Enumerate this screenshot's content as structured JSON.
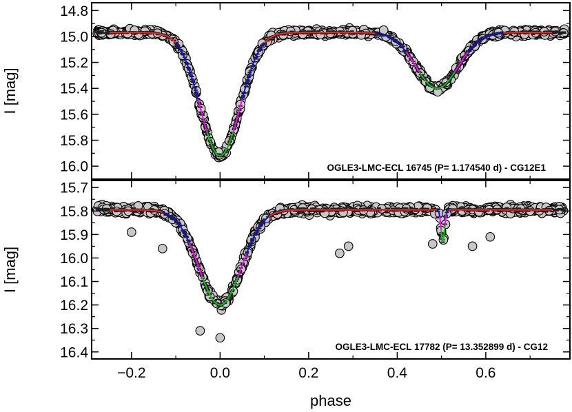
{
  "chart_data": [
    {
      "type": "scatter",
      "title": "",
      "xlabel": "",
      "ylabel": "I [mag]",
      "xlim": [
        -0.29,
        0.79
      ],
      "ylim": [
        16.1,
        14.74
      ],
      "y_inverted": true,
      "yticks": [
        "14.8",
        "15.0",
        "15.2",
        "15.4",
        "15.6",
        "15.8",
        "16.0"
      ],
      "annotation": "OGLE3-LMC-ECL 16745  (P= 1.174540 d) - CG12E1",
      "model": {
        "baseline": 14.97,
        "eclipses": [
          {
            "center": 0.0,
            "depth": 0.95,
            "width": 0.045
          },
          {
            "center": 0.49,
            "depth": 0.43,
            "width": 0.048
          }
        ]
      },
      "model_segments": [
        {
          "color": "red",
          "x": [
            -0.25,
            -0.1
          ]
        },
        {
          "color": "blue",
          "x": [
            -0.1,
            -0.05
          ]
        },
        {
          "color": "magenta",
          "x": [
            -0.05,
            -0.03
          ]
        },
        {
          "color": "green",
          "x": [
            -0.03,
            0.03
          ]
        },
        {
          "color": "magenta",
          "x": [
            0.03,
            0.05
          ]
        },
        {
          "color": "blue",
          "x": [
            0.05,
            0.1
          ]
        },
        {
          "color": "red",
          "x": [
            0.1,
            0.35
          ]
        },
        {
          "color": "blue",
          "x": [
            0.35,
            0.42
          ]
        },
        {
          "color": "magenta",
          "x": [
            0.42,
            0.45
          ]
        },
        {
          "color": "green",
          "x": [
            0.45,
            0.53
          ]
        },
        {
          "color": "magenta",
          "x": [
            0.53,
            0.56
          ]
        },
        {
          "color": "blue",
          "x": [
            0.56,
            0.64
          ]
        },
        {
          "color": "red",
          "x": [
            0.64,
            0.75
          ]
        }
      ],
      "observations": {
        "scatter": 0.03,
        "outliers": []
      }
    },
    {
      "type": "scatter",
      "title": "",
      "xlabel": "phase",
      "ylabel": "I [mag]",
      "xlim": [
        -0.29,
        0.79
      ],
      "ylim": [
        16.43,
        15.67
      ],
      "y_inverted": true,
      "xticks": [
        "−0.2",
        "0.0",
        "0.2",
        "0.4",
        "0.6"
      ],
      "yticks": [
        "15.7",
        "15.8",
        "15.9",
        "16.0",
        "16.1",
        "16.2",
        "16.3",
        "16.4"
      ],
      "annotation": "OGLE3-LMC-ECL 17782  (P= 13.352899 d) - CG12",
      "model": {
        "baseline": 15.795,
        "eclipses": [
          {
            "center": 0.0,
            "depth": 0.405,
            "width": 0.048
          },
          {
            "center": 0.503,
            "depth": 0.135,
            "width": 0.004
          }
        ]
      },
      "model_segments": [
        {
          "color": "red",
          "x": [
            -0.25,
            -0.13
          ]
        },
        {
          "color": "blue",
          "x": [
            -0.13,
            -0.07
          ]
        },
        {
          "color": "magenta",
          "x": [
            -0.07,
            -0.04
          ]
        },
        {
          "color": "green",
          "x": [
            -0.04,
            0.04
          ]
        },
        {
          "color": "magenta",
          "x": [
            0.04,
            0.06
          ]
        },
        {
          "color": "blue",
          "x": [
            0.06,
            0.11
          ]
        },
        {
          "color": "red",
          "x": [
            0.11,
            0.49
          ]
        },
        {
          "color": "blue",
          "x": [
            0.49,
            0.496
          ]
        },
        {
          "color": "magenta",
          "x": [
            0.496,
            0.499
          ]
        },
        {
          "color": "green",
          "x": [
            0.499,
            0.508
          ]
        },
        {
          "color": "magenta",
          "x": [
            0.508,
            0.511
          ]
        },
        {
          "color": "blue",
          "x": [
            0.511,
            0.516
          ]
        },
        {
          "color": "red",
          "x": [
            0.516,
            0.75
          ]
        }
      ],
      "observations": {
        "scatter": 0.02,
        "outliers": [
          {
            "x": -0.2,
            "y": 15.89
          },
          {
            "x": -0.13,
            "y": 15.96
          },
          {
            "x": -0.045,
            "y": 16.31
          },
          {
            "x": 0.0,
            "y": 16.34
          },
          {
            "x": 0.27,
            "y": 15.98
          },
          {
            "x": 0.29,
            "y": 15.95
          },
          {
            "x": 0.48,
            "y": 15.94
          },
          {
            "x": 0.57,
            "y": 15.95
          },
          {
            "x": 0.61,
            "y": 15.91
          }
        ]
      }
    }
  ]
}
